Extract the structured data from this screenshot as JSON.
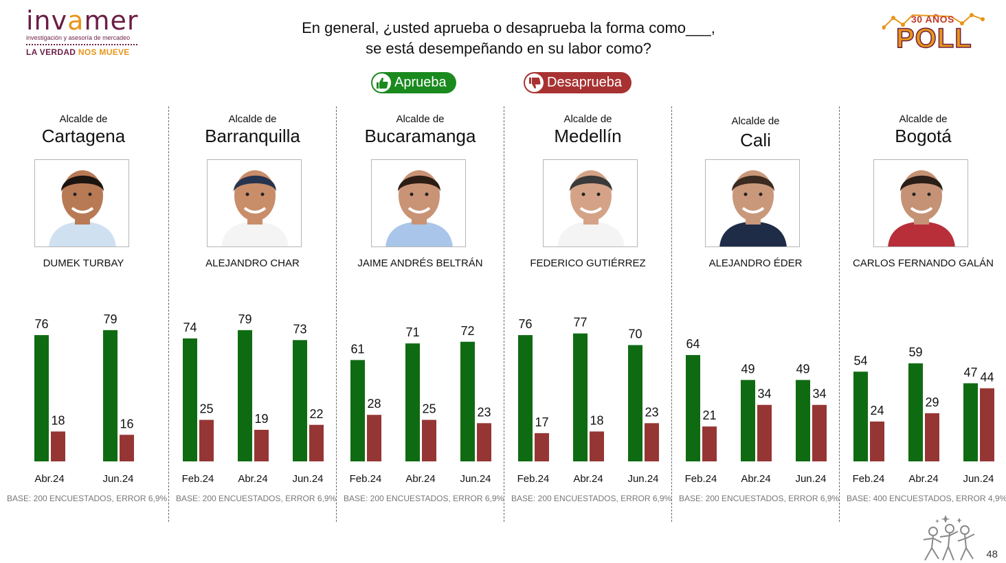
{
  "header": {
    "logo_word_left": "inv",
    "logo_word_x": "a",
    "logo_word_right": "mer",
    "logo_subtitle": "investigación y asesoría de mercadeo",
    "logo_tagline_a": "LA VERDAD ",
    "logo_tagline_b": "NOS MUEVE",
    "question_line1": "En general, ¿usted aprueba o desaprueba la forma como___,",
    "question_line2": "se está desempeñando en su labor como?",
    "poll_badge_top": "30 AÑOS",
    "poll_badge_word": "POLL"
  },
  "legend": {
    "approve": "Aprueba",
    "disapprove": "Desaprueba"
  },
  "colors": {
    "approve": "#0f6b12",
    "disapprove": "#953635",
    "brand": "#6b1e45",
    "accent": "#e8951a"
  },
  "page_number": "48",
  "chart_data": [
    {
      "type": "bar",
      "title_prefix": "Alcalde de",
      "title": "Cartagena",
      "person": "DUMEK TURBAY",
      "categories": [
        "Abr.24",
        "Jun.24"
      ],
      "series": [
        {
          "name": "Aprueba",
          "values": [
            76,
            79
          ]
        },
        {
          "name": "Desaprueba",
          "values": [
            18,
            16
          ]
        }
      ],
      "ylim": [
        0,
        100
      ],
      "base_note": "BASE: 200 ENCUESTADOS, ERROR 6,9%"
    },
    {
      "type": "bar",
      "title_prefix": "Alcalde de",
      "title": "Barranquilla",
      "person": "ALEJANDRO CHAR",
      "categories": [
        "Feb.24",
        "Abr.24",
        "Jun.24"
      ],
      "series": [
        {
          "name": "Aprueba",
          "values": [
            74,
            79,
            73
          ]
        },
        {
          "name": "Desaprueba",
          "values": [
            25,
            19,
            22
          ]
        }
      ],
      "ylim": [
        0,
        100
      ],
      "base_note": "BASE: 200 ENCUESTADOS, ERROR 6,9%"
    },
    {
      "type": "bar",
      "title_prefix": "Alcalde de",
      "title": "Bucaramanga",
      "person": "JAIME ANDRÉS BELTRÁN",
      "categories": [
        "Feb.24",
        "Abr.24",
        "Jun.24"
      ],
      "series": [
        {
          "name": "Aprueba",
          "values": [
            61,
            71,
            72
          ]
        },
        {
          "name": "Desaprueba",
          "values": [
            28,
            25,
            23
          ]
        }
      ],
      "ylim": [
        0,
        100
      ],
      "base_note": "BASE: 200 ENCUESTADOS, ERROR 6,9%"
    },
    {
      "type": "bar",
      "title_prefix": "Alcalde de",
      "title": "Medellín",
      "person": "FEDERICO GUTIÉRREZ",
      "categories": [
        "Feb.24",
        "Abr.24",
        "Jun.24"
      ],
      "series": [
        {
          "name": "Aprueba",
          "values": [
            76,
            77,
            70
          ]
        },
        {
          "name": "Desaprueba",
          "values": [
            17,
            18,
            23
          ]
        }
      ],
      "ylim": [
        0,
        100
      ],
      "base_note": "BASE: 200 ENCUESTADOS, ERROR 6,9%"
    },
    {
      "type": "bar",
      "title_prefix": "Alcalde de",
      "title": "Cali",
      "person": "ALEJANDRO ÉDER",
      "categories": [
        "Feb.24",
        "Abr.24",
        "Jun.24"
      ],
      "series": [
        {
          "name": "Aprueba",
          "values": [
            64,
            49,
            49
          ]
        },
        {
          "name": "Desaprueba",
          "values": [
            21,
            34,
            34
          ]
        }
      ],
      "ylim": [
        0,
        100
      ],
      "base_note": "BASE: 200 ENCUESTADOS, ERROR 6,9%"
    },
    {
      "type": "bar",
      "title_prefix": "Alcalde de",
      "title": "Bogotá",
      "person": "CARLOS FERNANDO GALÁN",
      "categories": [
        "Feb.24",
        "Abr.24",
        "Jun.24"
      ],
      "series": [
        {
          "name": "Aprueba",
          "values": [
            54,
            59,
            47
          ]
        },
        {
          "name": "Desaprueba",
          "values": [
            24,
            29,
            44
          ]
        }
      ],
      "ylim": [
        0,
        100
      ],
      "base_note": "BASE: 400 ENCUESTADOS, ERROR 4,9%"
    }
  ]
}
